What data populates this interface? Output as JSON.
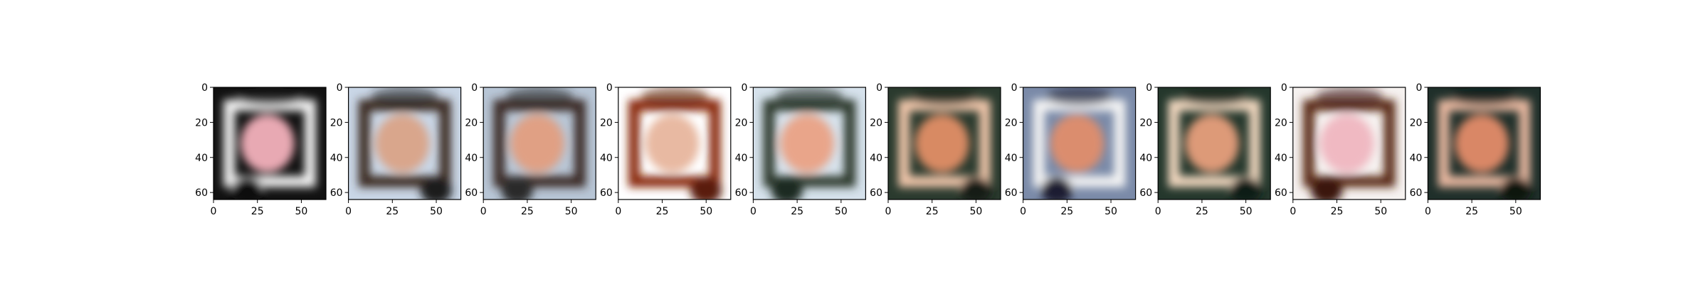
{
  "chart_data": [
    {
      "type": "heatmap",
      "image": "generated-sample-1",
      "xticks": [
        "0",
        "25",
        "50"
      ],
      "yticks": [
        "0",
        "20",
        "40",
        "60"
      ],
      "xlim": [
        0,
        64
      ],
      "ylim": [
        64,
        0
      ]
    },
    {
      "type": "heatmap",
      "image": "generated-sample-2",
      "xticks": [
        "0",
        "25",
        "50"
      ],
      "yticks": [
        "0",
        "20",
        "40",
        "60"
      ],
      "xlim": [
        0,
        64
      ],
      "ylim": [
        64,
        0
      ]
    },
    {
      "type": "heatmap",
      "image": "generated-sample-3",
      "xticks": [
        "0",
        "25",
        "50"
      ],
      "yticks": [
        "0",
        "20",
        "40",
        "60"
      ],
      "xlim": [
        0,
        64
      ],
      "ylim": [
        64,
        0
      ]
    },
    {
      "type": "heatmap",
      "image": "generated-sample-4",
      "xticks": [
        "0",
        "25",
        "50"
      ],
      "yticks": [
        "0",
        "20",
        "40",
        "60"
      ],
      "xlim": [
        0,
        64
      ],
      "ylim": [
        64,
        0
      ]
    },
    {
      "type": "heatmap",
      "image": "generated-sample-5",
      "xticks": [
        "0",
        "25",
        "50"
      ],
      "yticks": [
        "0",
        "20",
        "40",
        "60"
      ],
      "xlim": [
        0,
        64
      ],
      "ylim": [
        64,
        0
      ]
    },
    {
      "type": "heatmap",
      "image": "generated-sample-6",
      "xticks": [
        "0",
        "25",
        "50"
      ],
      "yticks": [
        "0",
        "20",
        "40",
        "60"
      ],
      "xlim": [
        0,
        64
      ],
      "ylim": [
        64,
        0
      ]
    },
    {
      "type": "heatmap",
      "image": "generated-sample-7",
      "xticks": [
        "0",
        "25",
        "50"
      ],
      "yticks": [
        "0",
        "20",
        "40",
        "60"
      ],
      "xlim": [
        0,
        64
      ],
      "ylim": [
        64,
        0
      ]
    },
    {
      "type": "heatmap",
      "image": "generated-sample-8",
      "xticks": [
        "0",
        "25",
        "50"
      ],
      "yticks": [
        "0",
        "20",
        "40",
        "60"
      ],
      "xlim": [
        0,
        64
      ],
      "ylim": [
        64,
        0
      ]
    },
    {
      "type": "heatmap",
      "image": "generated-sample-9",
      "xticks": [
        "0",
        "25",
        "50"
      ],
      "yticks": [
        "0",
        "20",
        "40",
        "60"
      ],
      "xlim": [
        0,
        64
      ],
      "ylim": [
        64,
        0
      ]
    },
    {
      "type": "heatmap",
      "image": "generated-sample-10",
      "xticks": [
        "0",
        "25",
        "50"
      ],
      "yticks": [
        "0",
        "20",
        "40",
        "60"
      ],
      "xlim": [
        0,
        64
      ],
      "ylim": [
        64,
        0
      ]
    }
  ]
}
